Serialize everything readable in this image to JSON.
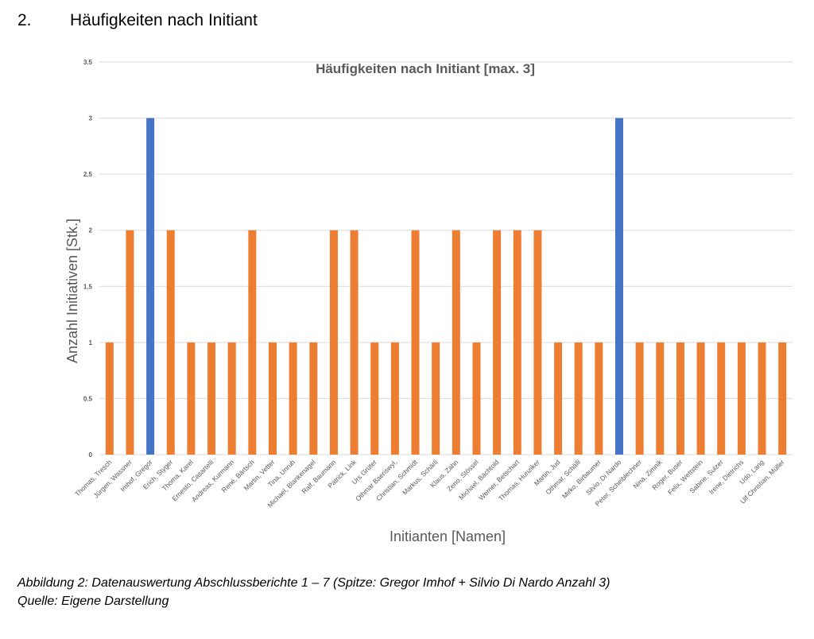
{
  "heading": {
    "number": "2.",
    "title": "Häufigkeiten nach Initiant"
  },
  "chart_data": {
    "type": "bar",
    "title": "Häufigkeiten nach Initiant [max. 3]",
    "xlabel": "Initianten [Namen]",
    "ylabel": "Anzahl Initiativen [Stk.]",
    "ylim": [
      0,
      3.5
    ],
    "yticks": [
      "0",
      "0.5",
      "1",
      "1.5",
      "2",
      "2.5",
      "3",
      "3.5"
    ],
    "grid": true,
    "legend": "none",
    "colors": {
      "default": "#ED7D31",
      "highlight": "#4472C4",
      "grid": "#d9d9d9",
      "text": "#595959"
    },
    "categories": [
      "Thomas, Tresch",
      "Jürgen, Wassner",
      "Imhof, Gregor",
      "Erich, Styger",
      "Thoma, Karel",
      "Ernesto, Casartelli",
      "Andreas, Kurmann",
      "René, Bärtsch",
      "Martin, Vetter",
      "Tina, Unruh",
      "Michael, Blankenagel",
      "Ralf, Baumann",
      "Patrick, Link",
      "Urs Grüter",
      "Othmar Baeriswyl,",
      "Christian, Schmidt",
      "Markus, Schärli",
      "Klaus, Zahn",
      "Zeno, Stössel",
      "Michael, Bächtold",
      "Werner, Betschart",
      "Thomas, Hunziker",
      "Martin, Jud",
      "Othmar, Schälli",
      "Mirko, Birbaumer",
      "Silvio, Di Nardo",
      "Peter, Scheiblechner",
      "Nina, Zimnik",
      "Roger, Buser",
      "Felix, Wettstein",
      "Sabine, Sulzer",
      "Irene, Dietrichs",
      "Udo, Lang",
      "Ulf Christian, Müller"
    ],
    "values": [
      1,
      2,
      3,
      2,
      1,
      1,
      1,
      2,
      1,
      1,
      1,
      2,
      2,
      1,
      1,
      2,
      1,
      2,
      1,
      2,
      2,
      2,
      1,
      1,
      1,
      3,
      1,
      1,
      1,
      1,
      1,
      1,
      1,
      1
    ],
    "highlighted": [
      "Imhof, Gregor",
      "Silvio, Di Nardo"
    ]
  },
  "caption": {
    "line1": "Abbildung 2: Datenauswertung Abschlussberichte 1 – 7 (Spitze: Gregor Imhof + Silvio Di Nardo Anzahl 3)",
    "line2": "Quelle: Eigene Darstellung"
  }
}
